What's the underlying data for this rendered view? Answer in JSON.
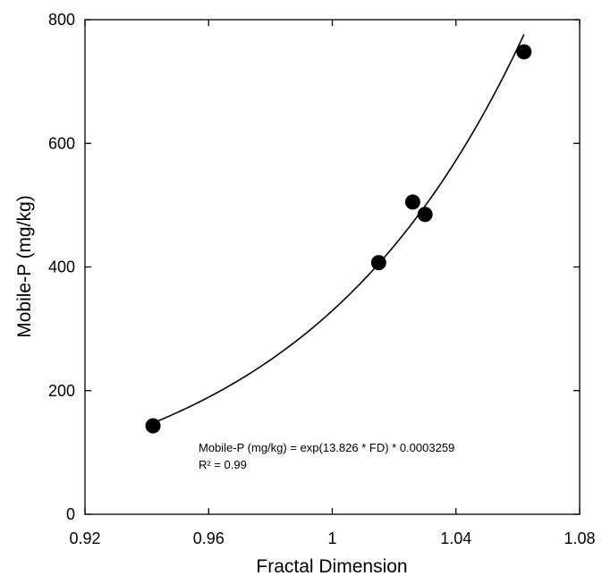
{
  "chart_data": {
    "type": "scatter",
    "xlabel": "Fractal Dimension",
    "ylabel": "Mobile-P (mg/kg)",
    "xlim": [
      0.92,
      1.08
    ],
    "ylim": [
      0,
      800
    ],
    "xticks": [
      0.92,
      0.96,
      1.0,
      1.04,
      1.08
    ],
    "xtick_labels": [
      "0.92",
      "0.96",
      "1",
      "1.04",
      "1.08"
    ],
    "yticks": [
      0,
      200,
      400,
      600,
      800
    ],
    "ytick_labels": [
      "0",
      "200",
      "400",
      "600",
      "800"
    ],
    "grid": false,
    "points": [
      {
        "x": 0.942,
        "y": 143
      },
      {
        "x": 1.015,
        "y": 407
      },
      {
        "x": 1.026,
        "y": 505
      },
      {
        "x": 1.03,
        "y": 485
      },
      {
        "x": 1.062,
        "y": 748
      }
    ],
    "fit": {
      "model": "exponential",
      "a": 13.826,
      "b": 0.0003259,
      "x_range": [
        0.942,
        1.062
      ]
    },
    "annotation": {
      "equation": "Mobile-P (mg/kg) = exp(13.826 * FD) * 0.0003259",
      "r2": "R² = 0.99"
    }
  }
}
